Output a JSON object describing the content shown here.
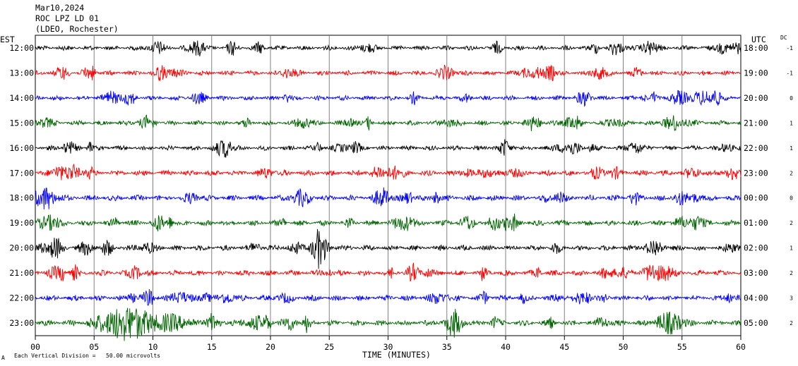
{
  "header": {
    "date": "Mar10,2024",
    "station": "ROC LPZ LD 01",
    "location": "(LDEO, Rochester)"
  },
  "left_axis_title": "EST",
  "right_axis_title": "UTC",
  "dc_title": "DC",
  "footer": {
    "xlabel": "TIME (MINUTES)",
    "note": "Each Vertical Division =   50.00 microvolts",
    "corner_mark": "A"
  },
  "chart_data": {
    "type": "line",
    "title": "ROC LPZ LD 01",
    "xlabel": "TIME (MINUTES)",
    "xlim": [
      0,
      60
    ],
    "x_ticks": [
      "00",
      "05",
      "10",
      "15",
      "20",
      "25",
      "30",
      "35",
      "40",
      "45",
      "50",
      "55",
      "60"
    ],
    "grid": true,
    "series": [
      {
        "est": "12:00",
        "utc": "18:00",
        "dc": "-1",
        "color": "#000000",
        "amp": 5
      },
      {
        "est": "13:00",
        "utc": "19:00",
        "dc": "-1",
        "color": "#ff0000",
        "amp": 5
      },
      {
        "est": "14:00",
        "utc": "20:00",
        "dc": "0",
        "color": "#0000ff",
        "amp": 5
      },
      {
        "est": "15:00",
        "utc": "21:00",
        "dc": "1",
        "color": "#006400",
        "amp": 5
      },
      {
        "est": "16:00",
        "utc": "22:00",
        "dc": "1",
        "color": "#000000",
        "amp": 5
      },
      {
        "est": "17:00",
        "utc": "23:00",
        "dc": "2",
        "color": "#ff0000",
        "amp": 6
      },
      {
        "est": "18:00",
        "utc": "00:00",
        "dc": "0",
        "color": "#0000ff",
        "amp": 6
      },
      {
        "est": "19:00",
        "utc": "01:00",
        "dc": "2",
        "color": "#006400",
        "amp": 6
      },
      {
        "est": "20:00",
        "utc": "02:00",
        "dc": "1",
        "color": "#000000",
        "amp": 6
      },
      {
        "est": "21:00",
        "utc": "03:00",
        "dc": "2",
        "color": "#ff0000",
        "amp": 6
      },
      {
        "est": "22:00",
        "utc": "04:00",
        "dc": "3",
        "color": "#0000ff",
        "amp": 6
      },
      {
        "est": "23:00",
        "utc": "05:00",
        "dc": "2",
        "color": "#006400",
        "amp": 6,
        "event": {
          "start_min": 4,
          "peak_min": 8,
          "end_min": 18,
          "peak_amp": 26
        }
      }
    ]
  }
}
